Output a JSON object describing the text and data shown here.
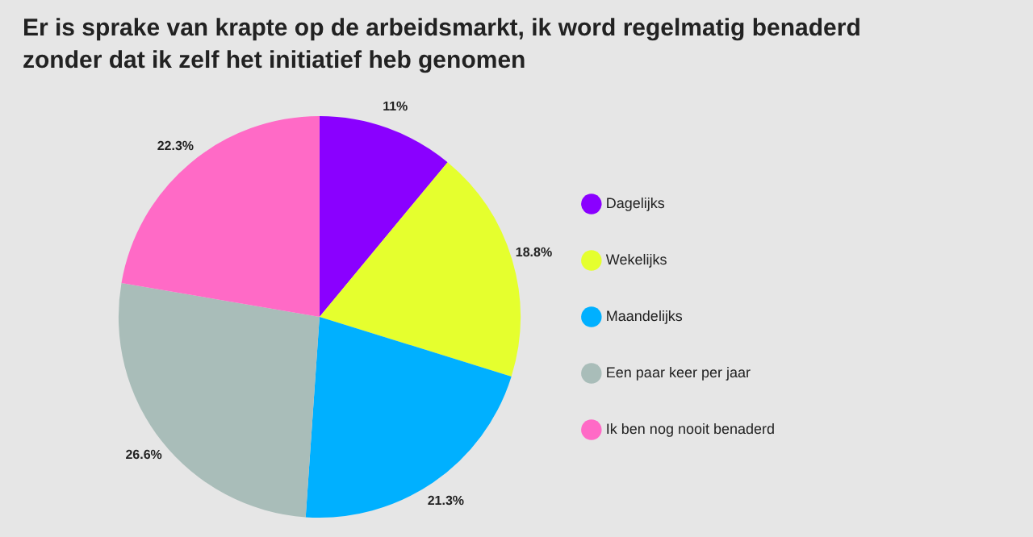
{
  "chart_data": {
    "type": "pie",
    "title": "Er is sprake van krapte op de arbeidsmarkt, ik word regelmatig benaderd zonder dat ik zelf het initiatief heb genomen",
    "categories": [
      "Dagelijks",
      "Wekelijks",
      "Maandelijks",
      "Een paar keer per jaar",
      "Ik ben nog nooit benaderd"
    ],
    "values": [
      11,
      18.8,
      21.3,
      26.6,
      22.3
    ],
    "colors": [
      "#8a00ff",
      "#e5ff2e",
      "#00b0ff",
      "#a9bdb9",
      "#ff6ac6"
    ],
    "value_labels": [
      "11%",
      "18.8%",
      "21.3%",
      "26.6%",
      "22.3%"
    ],
    "legend": "right"
  }
}
